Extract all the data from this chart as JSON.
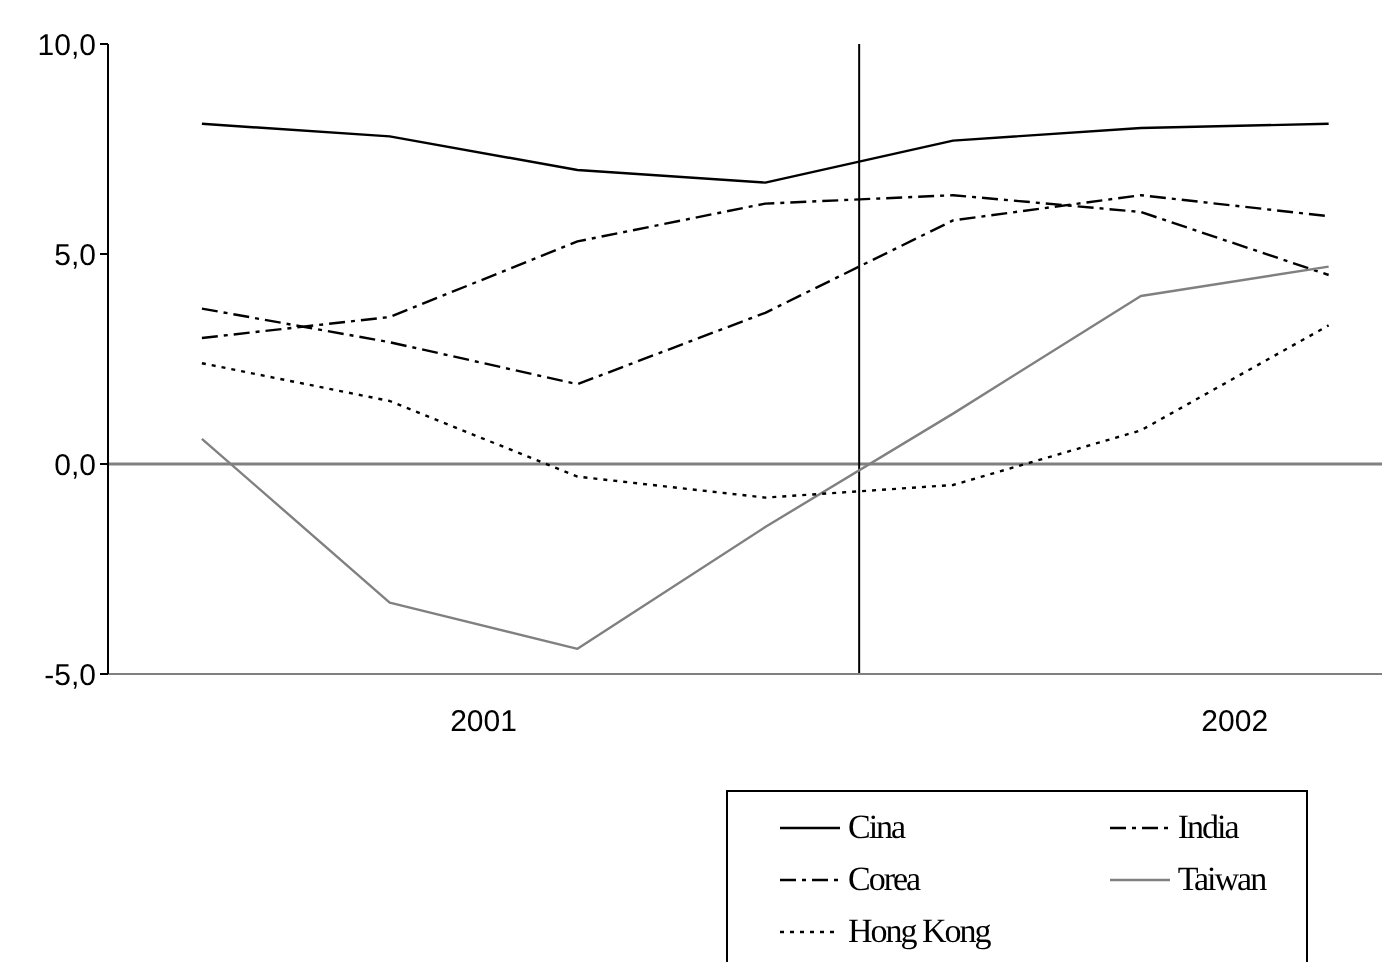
{
  "chart_data": {
    "type": "line",
    "x": [
      2001.125,
      2001.375,
      2001.625,
      2001.875,
      2002.125,
      2002.375,
      2002.625
    ],
    "xlim": [
      2001,
      2002.72
    ],
    "xticks": [
      {
        "value": 2001.5,
        "label": "2001"
      },
      {
        "value": 2002.5,
        "label": "2002"
      }
    ],
    "ylim": [
      -5,
      10
    ],
    "yticks": [
      {
        "value": -5,
        "label": "-5,0"
      },
      {
        "value": 0,
        "label": "0,0"
      },
      {
        "value": 5,
        "label": "5,0"
      },
      {
        "value": 10,
        "label": "10,0"
      }
    ],
    "series": [
      {
        "name": "Cina",
        "color": "#000000",
        "line_style": "solid",
        "values": [
          8.1,
          7.8,
          7.0,
          6.7,
          7.7,
          8.0,
          8.1
        ]
      },
      {
        "name": "India",
        "color": "#000000",
        "line_style": "dashed",
        "values": [
          3.0,
          3.5,
          5.3,
          6.2,
          6.4,
          6.0,
          4.5
        ]
      },
      {
        "name": "Corea",
        "color": "#000000",
        "line_style": "dashed",
        "values": [
          3.7,
          2.9,
          1.9,
          3.6,
          5.8,
          6.4,
          5.9
        ]
      },
      {
        "name": "Taiwan",
        "color": "#808080",
        "line_style": "solid",
        "values": [
          0.6,
          -3.3,
          -4.4,
          -1.5,
          1.2,
          4.0,
          4.7
        ]
      },
      {
        "name": "Hong Kong",
        "color": "#000000",
        "line_style": "dotted",
        "values": [
          2.4,
          1.5,
          -0.3,
          -0.8,
          -0.5,
          0.8,
          3.3
        ]
      }
    ],
    "ref_lines": [
      {
        "axis": "y",
        "value": 0,
        "color": "#808080"
      },
      {
        "axis": "x",
        "value": 2002,
        "color": "#000000"
      }
    ],
    "grid": false,
    "marker": "none",
    "legend": "bottom right"
  }
}
